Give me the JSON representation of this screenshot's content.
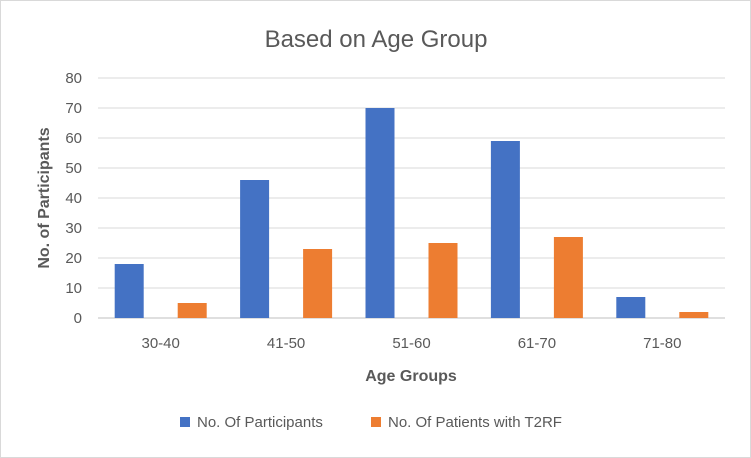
{
  "chart_data": {
    "type": "bar",
    "title": "Based on Age Group",
    "xlabel": "Age Groups",
    "ylabel": "No. of Participants",
    "categories": [
      "30-40",
      "41-50",
      "51-60",
      "61-70",
      "71-80"
    ],
    "series": [
      {
        "name": "No. Of Participants",
        "values": [
          18,
          46,
          70,
          59,
          7
        ],
        "color": "#4472C4"
      },
      {
        "name": "No. Of Patients with T2RF",
        "values": [
          5,
          23,
          25,
          27,
          2
        ],
        "color": "#ED7D31"
      }
    ],
    "ylim": [
      0,
      80
    ],
    "yticks": [
      0,
      10,
      20,
      30,
      40,
      50,
      60,
      70,
      80
    ],
    "grid": true,
    "legend_position": "bottom"
  }
}
